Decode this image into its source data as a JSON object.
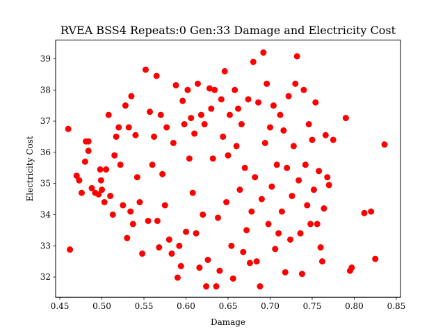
{
  "chart_data": {
    "type": "scatter",
    "title": "RVEA BSS4 Repeats:0 Gen:33 Damage and Electricity Cost",
    "xlabel": "Damage",
    "ylabel": "Electricity Cost",
    "xlim": [
      0.445,
      0.855
    ],
    "ylim": [
      31.35,
      39.6
    ],
    "xticks": [
      0.45,
      0.5,
      0.55,
      0.6,
      0.65,
      0.7,
      0.75,
      0.8,
      0.85
    ],
    "xtick_labels": [
      "0.45",
      "0.50",
      "0.55",
      "0.60",
      "0.65",
      "0.70",
      "0.75",
      "0.80",
      "0.85"
    ],
    "yticks": [
      32,
      33,
      34,
      35,
      36,
      37,
      38,
      39
    ],
    "ytick_labels": [
      "32",
      "33",
      "34",
      "35",
      "36",
      "37",
      "38",
      "39"
    ],
    "grid": false,
    "marker_color": "#ff0000",
    "points": [
      [
        0.46,
        36.75
      ],
      [
        0.462,
        32.88
      ],
      [
        0.47,
        35.25
      ],
      [
        0.473,
        35.1
      ],
      [
        0.476,
        34.7
      ],
      [
        0.48,
        35.7
      ],
      [
        0.481,
        36.35
      ],
      [
        0.484,
        36.05
      ],
      [
        0.484,
        36.35
      ],
      [
        0.488,
        34.85
      ],
      [
        0.492,
        34.7
      ],
      [
        0.496,
        34.65
      ],
      [
        0.498,
        35.45
      ],
      [
        0.499,
        35.1
      ],
      [
        0.5,
        34.8
      ],
      [
        0.503,
        34.4
      ],
      [
        0.505,
        35.45
      ],
      [
        0.508,
        37.2
      ],
      [
        0.51,
        34.6
      ],
      [
        0.513,
        34.0
      ],
      [
        0.515,
        35.9
      ],
      [
        0.517,
        36.5
      ],
      [
        0.52,
        36.8
      ],
      [
        0.522,
        35.6
      ],
      [
        0.525,
        34.3
      ],
      [
        0.528,
        37.5
      ],
      [
        0.53,
        33.25
      ],
      [
        0.532,
        36.8
      ],
      [
        0.534,
        34.1
      ],
      [
        0.535,
        37.8
      ],
      [
        0.537,
        33.7
      ],
      [
        0.54,
        36.55
      ],
      [
        0.542,
        35.2
      ],
      [
        0.545,
        34.4
      ],
      [
        0.548,
        32.75
      ],
      [
        0.552,
        38.65
      ],
      [
        0.555,
        33.8
      ],
      [
        0.557,
        37.3
      ],
      [
        0.56,
        35.6
      ],
      [
        0.562,
        36.5
      ],
      [
        0.565,
        38.45
      ],
      [
        0.566,
        33.8
      ],
      [
        0.568,
        32.95
      ],
      [
        0.57,
        37.2
      ],
      [
        0.572,
        35.3
      ],
      [
        0.575,
        34.3
      ],
      [
        0.577,
        36.8
      ],
      [
        0.58,
        33.2
      ],
      [
        0.583,
        32.75
      ],
      [
        0.585,
        36.3
      ],
      [
        0.588,
        38.15
      ],
      [
        0.59,
        31.98
      ],
      [
        0.592,
        33.0
      ],
      [
        0.594,
        32.35
      ],
      [
        0.596,
        37.65
      ],
      [
        0.598,
        36.9
      ],
      [
        0.6,
        33.45
      ],
      [
        0.602,
        38.0
      ],
      [
        0.604,
        35.8
      ],
      [
        0.606,
        37.1
      ],
      [
        0.608,
        34.7
      ],
      [
        0.61,
        36.6
      ],
      [
        0.612,
        33.4
      ],
      [
        0.614,
        38.2
      ],
      [
        0.616,
        32.3
      ],
      [
        0.618,
        37.2
      ],
      [
        0.62,
        34.0
      ],
      [
        0.622,
        36.9
      ],
      [
        0.624,
        31.7
      ],
      [
        0.626,
        32.55
      ],
      [
        0.628,
        38.05
      ],
      [
        0.63,
        37.4
      ],
      [
        0.632,
        35.8
      ],
      [
        0.634,
        38.0
      ],
      [
        0.636,
        31.7
      ],
      [
        0.638,
        33.9
      ],
      [
        0.64,
        32.2
      ],
      [
        0.642,
        37.7
      ],
      [
        0.644,
        36.5
      ],
      [
        0.646,
        38.6
      ],
      [
        0.648,
        34.4
      ],
      [
        0.65,
        35.9
      ],
      [
        0.652,
        37.2
      ],
      [
        0.654,
        33.0
      ],
      [
        0.656,
        31.95
      ],
      [
        0.658,
        38.0
      ],
      [
        0.66,
        36.2
      ],
      [
        0.662,
        37.4
      ],
      [
        0.664,
        34.8
      ],
      [
        0.666,
        36.9
      ],
      [
        0.668,
        32.8
      ],
      [
        0.67,
        35.5
      ],
      [
        0.672,
        33.5
      ],
      [
        0.674,
        37.7
      ],
      [
        0.676,
        32.45
      ],
      [
        0.678,
        34.1
      ],
      [
        0.68,
        38.9
      ],
      [
        0.682,
        35.2
      ],
      [
        0.684,
        32.5
      ],
      [
        0.686,
        37.6
      ],
      [
        0.688,
        31.7
      ],
      [
        0.69,
        34.5
      ],
      [
        0.692,
        39.2
      ],
      [
        0.694,
        36.3
      ],
      [
        0.696,
        38.2
      ],
      [
        0.698,
        33.7
      ],
      [
        0.7,
        36.8
      ],
      [
        0.702,
        34.9
      ],
      [
        0.704,
        37.5
      ],
      [
        0.706,
        32.9
      ],
      [
        0.708,
        35.6
      ],
      [
        0.71,
        33.4
      ],
      [
        0.712,
        37.2
      ],
      [
        0.714,
        34.1
      ],
      [
        0.716,
        36.7
      ],
      [
        0.718,
        32.15
      ],
      [
        0.72,
        35.5
      ],
      [
        0.722,
        37.8
      ],
      [
        0.724,
        33.2
      ],
      [
        0.726,
        34.6
      ],
      [
        0.728,
        36.2
      ],
      [
        0.73,
        38.2
      ],
      [
        0.732,
        39.08
      ],
      [
        0.734,
        35.1
      ],
      [
        0.736,
        33.4
      ],
      [
        0.738,
        32.1
      ],
      [
        0.74,
        38.0
      ],
      [
        0.742,
        35.6
      ],
      [
        0.744,
        34.3
      ],
      [
        0.746,
        36.9
      ],
      [
        0.748,
        33.7
      ],
      [
        0.75,
        36.4
      ],
      [
        0.752,
        34.8
      ],
      [
        0.754,
        37.6
      ],
      [
        0.756,
        33.7
      ],
      [
        0.758,
        35.4
      ],
      [
        0.76,
        32.95
      ],
      [
        0.762,
        32.5
      ],
      [
        0.764,
        34.2
      ],
      [
        0.766,
        36.55
      ],
      [
        0.768,
        35.2
      ],
      [
        0.77,
        34.95
      ],
      [
        0.775,
        36.4
      ],
      [
        0.79,
        37.1
      ],
      [
        0.795,
        32.2
      ],
      [
        0.797,
        32.3
      ],
      [
        0.812,
        34.05
      ],
      [
        0.82,
        34.1
      ],
      [
        0.825,
        32.58
      ],
      [
        0.836,
        36.25
      ]
    ]
  }
}
